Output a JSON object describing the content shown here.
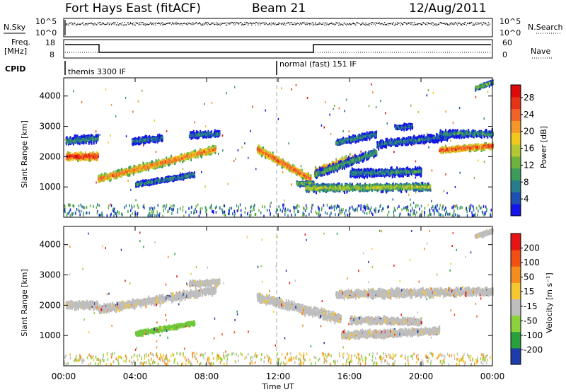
{
  "header": {
    "station": "Fort Hays East (fitACF)",
    "beam": "Beam 21",
    "date": "12/Aug/2011"
  },
  "noise_panel": {
    "left_label": "N.Sky",
    "right_label": "N.Search",
    "left_ticks": [
      "10^5",
      "10^0"
    ],
    "right_ticks": [
      "10^5",
      "10^0"
    ]
  },
  "freq_panel": {
    "left_label_line1": "Freq.",
    "left_label_line2": "[MHz]",
    "left_ticks": [
      "18",
      "8"
    ],
    "right_label": "Nave",
    "right_ticks": [
      "60",
      "0"
    ]
  },
  "cpid": {
    "label": "CPID",
    "programs": [
      {
        "name": "themis 3300 IF",
        "start_hour": 0
      },
      {
        "name": "normal (fast) 151 IF",
        "start_hour": 12
      }
    ]
  },
  "chart_data": [
    {
      "type": "heatmap",
      "id": "power",
      "xlabel": "",
      "ylabel": "Slant Range [km]",
      "xlim": [
        0,
        24
      ],
      "ylim": [
        0,
        4600
      ],
      "yticks": [
        "1000",
        "2000",
        "3000",
        "4000"
      ],
      "colorbar": {
        "label": "Power [dB]",
        "ticks": [
          "4",
          "8",
          "12",
          "16",
          "20",
          "24",
          "28"
        ],
        "colors": [
          "#1414e6",
          "#1e50b4",
          "#287d8c",
          "#3c9b5a",
          "#6eb43c",
          "#b4c832",
          "#f0c81e",
          "#f59628",
          "#f06428",
          "#e63219",
          "#dc0a0a"
        ]
      },
      "bands": [
        {
          "t": [
            0.1,
            1.9
          ],
          "r0": 2050,
          "r1": 2050,
          "w": 350,
          "level": 0.95
        },
        {
          "t": [
            0.1,
            1.9
          ],
          "r0": 2550,
          "r1": 2650,
          "w": 350,
          "level": 0.35
        },
        {
          "t": [
            1.9,
            8.5
          ],
          "r0": 1300,
          "r1": 2300,
          "w": 320,
          "level": 0.8
        },
        {
          "t": [
            3.8,
            5.5
          ],
          "r0": 2550,
          "r1": 2650,
          "w": 300,
          "level": 0.3
        },
        {
          "t": [
            4.0,
            7.3
          ],
          "r0": 1120,
          "r1": 1450,
          "w": 220,
          "level": 0.35
        },
        {
          "t": [
            7.0,
            8.7
          ],
          "r0": 2750,
          "r1": 2800,
          "w": 260,
          "level": 0.3
        },
        {
          "t": [
            10.8,
            13.8
          ],
          "r0": 2300,
          "r1": 1300,
          "w": 360,
          "level": 0.85
        },
        {
          "t": [
            13.0,
            14.0
          ],
          "r0": 1150,
          "r1": 1150,
          "w": 200,
          "level": 0.5
        },
        {
          "t": [
            14.0,
            16.3
          ],
          "r0": 1500,
          "r1": 2000,
          "w": 420,
          "level": 0.92
        },
        {
          "t": [
            14.0,
            17.5
          ],
          "r0": 1450,
          "r1": 2200,
          "w": 360,
          "level": 0.4
        },
        {
          "t": [
            13.5,
            20.5
          ],
          "r0": 1000,
          "r1": 1050,
          "w": 330,
          "level": 0.55
        },
        {
          "t": [
            16.0,
            20.0
          ],
          "r0": 1500,
          "r1": 1550,
          "w": 340,
          "level": 0.35
        },
        {
          "t": [
            15.2,
            17.5
          ],
          "r0": 2500,
          "r1": 2800,
          "w": 280,
          "level": 0.35
        },
        {
          "t": [
            17.5,
            21.5
          ],
          "r0": 2450,
          "r1": 2700,
          "w": 340,
          "level": 0.3
        },
        {
          "t": [
            18.5,
            19.5
          ],
          "r0": 3000,
          "r1": 3050,
          "w": 220,
          "level": 0.3
        },
        {
          "t": [
            21.0,
            24.0
          ],
          "r0": 2250,
          "r1": 2400,
          "w": 260,
          "level": 0.88
        },
        {
          "t": [
            21.0,
            24.0
          ],
          "r0": 2800,
          "r1": 2800,
          "w": 320,
          "level": 0.35
        },
        {
          "t": [
            23.0,
            24.0
          ],
          "r0": 4300,
          "r1": 4500,
          "w": 200,
          "level": 0.45
        }
      ]
    },
    {
      "type": "heatmap",
      "id": "velocity",
      "xlabel": "Time UT",
      "ylabel": "Slant Range [km]",
      "xlim": [
        0,
        24
      ],
      "ylim": [
        0,
        4600
      ],
      "xticks": [
        "00:00",
        "04:00",
        "08:00",
        "12:00",
        "16:00",
        "20:00",
        "00:00"
      ],
      "yticks": [
        "1000",
        "2000",
        "3000",
        "4000"
      ],
      "colorbar": {
        "label": "Velocity [m s⁻¹]",
        "ticks": [
          "200",
          "100",
          "50",
          "15",
          "-15",
          "-50",
          "-100",
          "-200"
        ],
        "colors": [
          "#1e3caa",
          "#28a03c",
          "#8cd23c",
          "#bebebe",
          "#f5c832",
          "#f58c1e",
          "#f05014",
          "#e61414"
        ]
      },
      "bands": [
        {
          "t": [
            0.1,
            1.9
          ],
          "r0": 2050,
          "r1": 2050,
          "w": 350,
          "color": "#bebebe"
        },
        {
          "t": [
            1.9,
            8.5
          ],
          "r0": 1900,
          "r1": 2550,
          "w": 360,
          "color": "#bebebe"
        },
        {
          "t": [
            4.0,
            7.3
          ],
          "r0": 1100,
          "r1": 1450,
          "w": 200,
          "color": "#6ec83c"
        },
        {
          "t": [
            7.0,
            8.7
          ],
          "r0": 2750,
          "r1": 2800,
          "w": 260,
          "color": "#bebebe"
        },
        {
          "t": [
            10.8,
            15.5
          ],
          "r0": 2300,
          "r1": 1600,
          "w": 420,
          "color": "#bebebe"
        },
        {
          "t": [
            15.5,
            21.0
          ],
          "r0": 1050,
          "r1": 1200,
          "w": 340,
          "color": "#bebebe"
        },
        {
          "t": [
            16.0,
            20.0
          ],
          "r0": 1550,
          "r1": 1500,
          "w": 320,
          "color": "#bebebe"
        },
        {
          "t": [
            15.2,
            24.0
          ],
          "r0": 2400,
          "r1": 2500,
          "w": 380,
          "color": "#bebebe"
        },
        {
          "t": [
            23.0,
            24.0
          ],
          "r0": 4300,
          "r1": 4500,
          "w": 200,
          "color": "#bebebe"
        }
      ]
    }
  ]
}
